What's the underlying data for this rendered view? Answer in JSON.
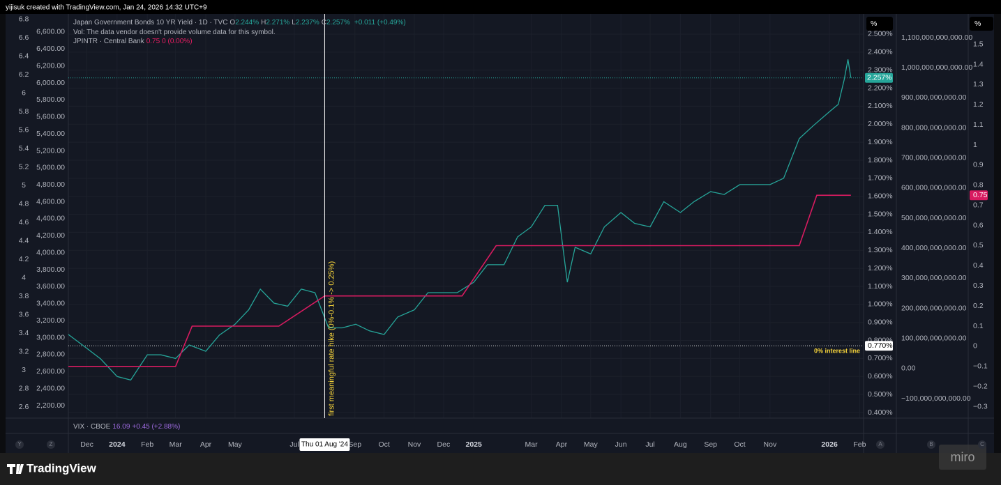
{
  "header": "yijisuk created with TradingView.com, Jan 24, 2026 14:32 UTC+9",
  "footer": {
    "logo": "TradingView",
    "watermark": "miro"
  },
  "chart_data": {
    "type": "line",
    "legend": {
      "symbol": "Japan Government Bonds 10 YR Yield · 1D · TVC",
      "ohlc": [
        [
          "O",
          "2.244%"
        ],
        [
          "H",
          "2.271%"
        ],
        [
          "L",
          "2.237%"
        ],
        [
          "C",
          "2.257%"
        ]
      ],
      "change": "+0.011 (+0.49%)",
      "volume": "Vol: The data vendor doesn't provide volume data for this symbol.",
      "rate_symbol": "JPINTR · Central Bank",
      "rate_value": "0.75",
      "rate_change": "0 (0.00%)"
    },
    "lower_pane": {
      "symbol": "VIX · CBOE",
      "value": "16.09",
      "change": "+0.45 (+2.88%)"
    },
    "annotation": "first meaningful rate hike (0%-0.1% -> 0.25%)",
    "crosshair": {
      "value": "2024-08-01",
      "label": "Thu 01 Aug '24"
    },
    "hline": {
      "value": 0.77,
      "label": "0.770%",
      "text": "0% interest line"
    },
    "last_price": {
      "value": 2.257,
      "label": "2.257%"
    },
    "last_rate": 0.75,
    "axis_units": [
      "%",
      "%"
    ],
    "buttons": [
      "Y",
      "Z",
      "A",
      "B",
      "C"
    ],
    "series": [
      {
        "name": "Japan Government Bonds 10 YR Yield",
        "color": "#26a69a",
        "x": [
          "2023-11-12",
          "2023-12-01",
          "2023-12-15",
          "2024-01-01",
          "2024-01-15",
          "2024-02-01",
          "2024-02-15",
          "2024-03-01",
          "2024-03-15",
          "2024-04-01",
          "2024-04-15",
          "2024-05-01",
          "2024-05-15",
          "2024-05-27",
          "2024-06-10",
          "2024-06-24",
          "2024-07-08",
          "2024-07-22",
          "2024-08-05",
          "2024-08-19",
          "2024-09-02",
          "2024-09-16",
          "2024-10-01",
          "2024-10-15",
          "2024-11-01",
          "2024-11-15",
          "2024-12-01",
          "2024-12-15",
          "2025-01-01",
          "2025-01-15",
          "2025-02-01",
          "2025-02-15",
          "2025-03-01",
          "2025-03-15",
          "2025-03-28",
          "2025-04-07",
          "2025-04-15",
          "2025-05-01",
          "2025-05-15",
          "2025-06-01",
          "2025-06-15",
          "2025-07-01",
          "2025-07-15",
          "2025-08-01",
          "2025-08-15",
          "2025-09-01",
          "2025-09-15",
          "2025-10-01",
          "2025-10-15",
          "2025-11-01",
          "2025-11-15",
          "2025-12-01",
          "2025-12-15",
          "2026-01-01",
          "2026-01-10",
          "2026-01-16",
          "2026-01-20",
          "2026-01-23"
        ],
        "values": [
          0.833,
          0.756,
          0.698,
          0.6,
          0.58,
          0.72,
          0.72,
          0.7,
          0.775,
          0.74,
          0.83,
          0.89,
          0.97,
          1.085,
          1.007,
          0.99,
          1.085,
          1.065,
          0.87,
          0.87,
          0.89,
          0.853,
          0.833,
          0.93,
          0.97,
          1.065,
          1.065,
          1.065,
          1.123,
          1.22,
          1.22,
          1.375,
          1.43,
          1.55,
          1.55,
          1.123,
          1.317,
          1.28,
          1.43,
          1.51,
          1.45,
          1.43,
          1.57,
          1.51,
          1.57,
          1.626,
          1.61,
          1.665,
          1.665,
          1.665,
          1.7,
          1.92,
          1.99,
          2.07,
          2.11,
          2.245,
          2.36,
          2.257
        ]
      },
      {
        "name": "JPINTR",
        "color": "#d81b60",
        "axis": "y2",
        "x": [
          "2023-11-12",
          "2024-03-01",
          "2024-03-18",
          "2024-06-15",
          "2024-08-01",
          "2024-12-20",
          "2025-01-24",
          "2025-12-01",
          "2025-12-19",
          "2026-01-23"
        ],
        "values": [
          -0.1,
          -0.1,
          0.1,
          0.1,
          0.25,
          0.25,
          0.5,
          0.5,
          0.75,
          0.75
        ]
      }
    ],
    "xlim": [
      "2023-11-12",
      "2026-02-05"
    ],
    "xticks": [
      {
        "value": "2023-12-01",
        "label": "Dec"
      },
      {
        "value": "2024-01-01",
        "label": "2024"
      },
      {
        "value": "2024-02-01",
        "label": "Feb"
      },
      {
        "value": "2024-03-01",
        "label": "Mar"
      },
      {
        "value": "2024-04-01",
        "label": "Apr"
      },
      {
        "value": "2024-05-01",
        "label": "May"
      },
      {
        "value": "2024-07-01",
        "label": "Jul"
      },
      {
        "value": "2024-09-01",
        "label": "Sep"
      },
      {
        "value": "2024-10-01",
        "label": "Oct"
      },
      {
        "value": "2024-11-01",
        "label": "Nov"
      },
      {
        "value": "2024-12-01",
        "label": "Dec"
      },
      {
        "value": "2025-01-01",
        "label": "2025"
      },
      {
        "value": "2025-03-01",
        "label": "Mar"
      },
      {
        "value": "2025-04-01",
        "label": "Apr"
      },
      {
        "value": "2025-05-01",
        "label": "May"
      },
      {
        "value": "2025-06-01",
        "label": "Jun"
      },
      {
        "value": "2025-07-01",
        "label": "Jul"
      },
      {
        "value": "2025-08-01",
        "label": "Aug"
      },
      {
        "value": "2025-09-01",
        "label": "Sep"
      },
      {
        "value": "2025-10-01",
        "label": "Oct"
      },
      {
        "value": "2025-11-01",
        "label": "Nov"
      },
      {
        "value": "2026-01-01",
        "label": "2026"
      },
      {
        "value": "2026-02-01",
        "label": "Feb"
      }
    ],
    "ylim": [
      0.369,
      2.612
    ],
    "yticks": [
      {
        "value": 2.5,
        "label": "2.500%"
      },
      {
        "value": 2.4,
        "label": "2.400%"
      },
      {
        "value": 2.3,
        "label": "2.300%"
      },
      {
        "value": 2.2,
        "label": "2.200%"
      },
      {
        "value": 2.1,
        "label": "2.100%"
      },
      {
        "value": 2.0,
        "label": "2.000%"
      },
      {
        "value": 1.9,
        "label": "1.900%"
      },
      {
        "value": 1.8,
        "label": "1.800%"
      },
      {
        "value": 1.7,
        "label": "1.700%"
      },
      {
        "value": 1.6,
        "label": "1.600%"
      },
      {
        "value": 1.5,
        "label": "1.500%"
      },
      {
        "value": 1.4,
        "label": "1.400%"
      },
      {
        "value": 1.3,
        "label": "1.300%"
      },
      {
        "value": 1.2,
        "label": "1.200%"
      },
      {
        "value": 1.1,
        "label": "1.100%"
      },
      {
        "value": 1.0,
        "label": "1.000%"
      },
      {
        "value": 0.9,
        "label": "0.900%"
      },
      {
        "value": 0.8,
        "label": "0.800%"
      },
      {
        "value": 0.7,
        "label": "0.700%"
      },
      {
        "value": 0.6,
        "label": "0.600%"
      },
      {
        "value": 0.5,
        "label": "0.500%"
      },
      {
        "value": 0.4,
        "label": "0.400%"
      }
    ],
    "y2lim": [
      -0.357,
      1.651
    ],
    "y2ticks": [
      1.5,
      1.4,
      1.3,
      1.2,
      1.1,
      1,
      0.9,
      0.8,
      0.7,
      0.6,
      0.5,
      0.4,
      0.3,
      0.2,
      0.1,
      0,
      {
        "value": -0.1,
        "label": "−0.1"
      },
      {
        "value": -0.2,
        "label": "−0.2"
      },
      {
        "value": -0.3,
        "label": "−0.3"
      }
    ],
    "other_axes": [
      {
        "side": "left",
        "lim": [
          2.479,
          6.86
        ],
        "ticks": [
          6.8,
          6.6,
          6.4,
          6.2,
          6,
          5.8,
          5.6,
          5.4,
          5.2,
          5,
          4.8,
          4.6,
          4.4,
          4.2,
          4,
          3.8,
          3.6,
          3.4,
          3.2,
          3,
          2.8,
          2.6
        ]
      },
      {
        "side": "left",
        "lim": [
          2052,
          6813
        ],
        "ticks": [
          {
            "value": 6600,
            "label": "6,600.00"
          },
          {
            "value": 6400,
            "label": "6,400.00"
          },
          {
            "value": 6200,
            "label": "6,200.00"
          },
          {
            "value": 6000,
            "label": "6,000.00"
          },
          {
            "value": 5800,
            "label": "5,800.00"
          },
          {
            "value": 5600,
            "label": "5,600.00"
          },
          {
            "value": 5400,
            "label": "5,400.00"
          },
          {
            "value": 5200,
            "label": "5,200.00"
          },
          {
            "value": 5000,
            "label": "5,000.00"
          },
          {
            "value": 4800,
            "label": "4,800.00"
          },
          {
            "value": 4600,
            "label": "4,600.00"
          },
          {
            "value": 4400,
            "label": "4,400.00"
          },
          {
            "value": 4200,
            "label": "4,200.00"
          },
          {
            "value": 4000,
            "label": "4,000.00"
          },
          {
            "value": 3800,
            "label": "3,800.00"
          },
          {
            "value": 3600,
            "label": "3,600.00"
          },
          {
            "value": 3400,
            "label": "3,400.00"
          },
          {
            "value": 3200,
            "label": "3,200.00"
          },
          {
            "value": 3000,
            "label": "3,000.00"
          },
          {
            "value": 2800,
            "label": "2,800.00"
          },
          {
            "value": 2600,
            "label": "2,600.00"
          },
          {
            "value": 2400,
            "label": "2,400.00"
          },
          {
            "value": 2200,
            "label": "2,200.00"
          }
        ]
      },
      {
        "side": "right",
        "lim": [
          -164900000000,
          1178800000000
        ],
        "ticks": [
          {
            "value": 1100000000000,
            "label": "1,100,000,000,000.00"
          },
          {
            "value": 1000000000000,
            "label": "1,000,000,000,000.00"
          },
          {
            "value": 900000000000,
            "label": "900,000,000,000.00"
          },
          {
            "value": 800000000000,
            "label": "800,000,000,000.00"
          },
          {
            "value": 700000000000,
            "label": "700,000,000,000.00"
          },
          {
            "value": 600000000000,
            "label": "600,000,000,000.00"
          },
          {
            "value": 500000000000,
            "label": "500,000,000,000.00"
          },
          {
            "value": 400000000000,
            "label": "400,000,000,000.00"
          },
          {
            "value": 300000000000,
            "label": "300,000,000,000.00"
          },
          {
            "value": 200000000000,
            "label": "200,000,000,000.00"
          },
          {
            "value": 100000000000,
            "label": "100,000,000,000.00"
          },
          {
            "value": 0,
            "label": "0.00"
          },
          {
            "value": -100000000000,
            "label": "−100,000,000,000.00"
          }
        ]
      }
    ],
    "grid": true
  }
}
